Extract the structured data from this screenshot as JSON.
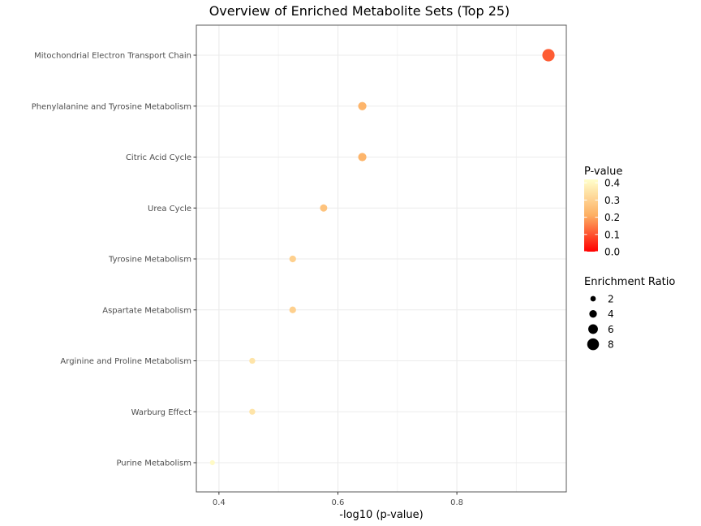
{
  "chart_data": {
    "type": "scatter",
    "title": "Overview of Enriched Metabolite Sets (Top 25)",
    "xlabel": "-log10 (p-value)",
    "ylabel": "",
    "xlim": [
      0.362,
      0.984
    ],
    "x_ticks": [
      0.4,
      0.6,
      0.8
    ],
    "x_tick_labels": [
      "0.4",
      "0.6",
      "0.8"
    ],
    "grid": true,
    "categories": [
      "Mitochondrial Electron Transport Chain",
      "Phenylalanine and Tyrosine Metabolism",
      "Citric Acid Cycle",
      "Urea Cycle",
      "Tyrosine Metabolism",
      "Aspartate Metabolism",
      "Arginine and Proline Metabolism",
      "Warburg Effect",
      "Purine Metabolism"
    ],
    "points": [
      {
        "set": "Mitochondrial Electron Transport Chain",
        "x": 0.954,
        "p_value": 0.111,
        "enrichment_ratio": 8.5
      },
      {
        "set": "Phenylalanine and Tyrosine Metabolism",
        "x": 0.641,
        "p_value": 0.229,
        "enrichment_ratio": 4.7
      },
      {
        "set": "Citric Acid Cycle",
        "x": 0.641,
        "p_value": 0.229,
        "enrichment_ratio": 4.7
      },
      {
        "set": "Urea Cycle",
        "x": 0.576,
        "p_value": 0.265,
        "enrichment_ratio": 3.7
      },
      {
        "set": "Tyrosine Metabolism",
        "x": 0.524,
        "p_value": 0.299,
        "enrichment_ratio": 3.2
      },
      {
        "set": "Aspartate Metabolism",
        "x": 0.524,
        "p_value": 0.299,
        "enrichment_ratio": 3.2
      },
      {
        "set": "Arginine and Proline Metabolism",
        "x": 0.456,
        "p_value": 0.35,
        "enrichment_ratio": 2.5
      },
      {
        "set": "Warburg Effect",
        "x": 0.456,
        "p_value": 0.35,
        "enrichment_ratio": 2.5
      },
      {
        "set": "Purine Metabolism",
        "x": 0.389,
        "p_value": 0.408,
        "enrichment_ratio": 1.6
      }
    ],
    "legend": {
      "placement": "right",
      "color": {
        "title": "P-value",
        "breaks": [
          0.4,
          0.3,
          0.2,
          0.1,
          0.0
        ],
        "labels": [
          "0.4",
          "0.3",
          "0.2",
          "0.1",
          "0.0"
        ],
        "range": [
          0.0,
          0.42
        ],
        "low_color": "#ff0000",
        "mid_color": "#fdae61",
        "high_color": "#ffffcc"
      },
      "size": {
        "title": "Enrichment Ratio",
        "breaks": [
          2,
          4,
          6,
          8
        ],
        "labels": [
          "2",
          "4",
          "6",
          "8"
        ]
      }
    },
    "colors": {
      "panel_border": "#595959",
      "grid_major": "#ebebeb",
      "grid_minor": "#f4f4f4",
      "tick": "#333333",
      "size_key": "#000000"
    }
  }
}
